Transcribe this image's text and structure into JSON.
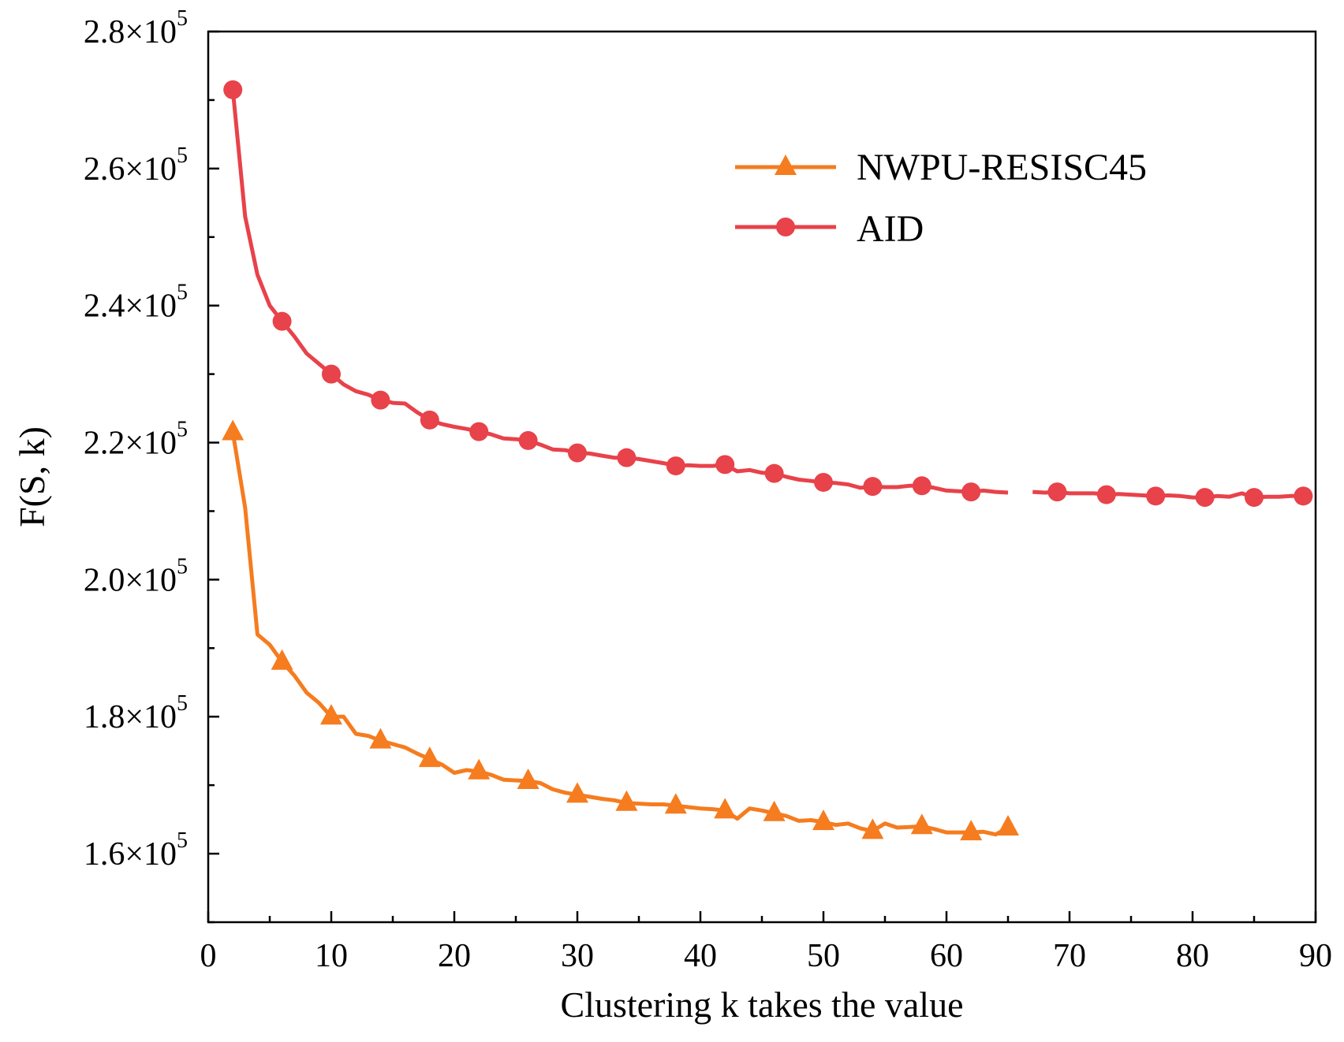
{
  "chart_data": {
    "type": "line",
    "title": "",
    "xlabel": "Clustering k takes the value",
    "ylabel": "F(S,  k)",
    "xlim": [
      0,
      90
    ],
    "ylim": [
      150000,
      280000
    ],
    "x_ticks": [
      0,
      10,
      20,
      30,
      40,
      50,
      60,
      70,
      80,
      90
    ],
    "x_tick_labels": [
      "0",
      "10",
      "20",
      "30",
      "40",
      "50",
      "60",
      "70",
      "80",
      "90"
    ],
    "y_ticks": [
      160000,
      180000,
      200000,
      220000,
      240000,
      260000,
      280000
    ],
    "y_tick_labels": [
      {
        "mantissa": "1.6×10",
        "exp": "5"
      },
      {
        "mantissa": "1.8×10",
        "exp": "5"
      },
      {
        "mantissa": "2.0×10",
        "exp": "5"
      },
      {
        "mantissa": "2.2×10",
        "exp": "5"
      },
      {
        "mantissa": "2.4×10",
        "exp": "5"
      },
      {
        "mantissa": "2.6×10",
        "exp": "5"
      },
      {
        "mantissa": "2.8×10",
        "exp": "5"
      }
    ],
    "legend_position": "top-right",
    "series": [
      {
        "name": "NWPU-RESISC45",
        "color": "#f57c1f",
        "marker": "triangle",
        "x": [
          2,
          3,
          4,
          5,
          6,
          7,
          8,
          9,
          10,
          11,
          12,
          13,
          14,
          15,
          16,
          17,
          18,
          19,
          20,
          21,
          22,
          23,
          24,
          25,
          26,
          27,
          28,
          29,
          30,
          31,
          32,
          33,
          34,
          35,
          36,
          37,
          38,
          39,
          40,
          41,
          42,
          43,
          44,
          45,
          46,
          47,
          48,
          49,
          50,
          51,
          52,
          53,
          54,
          55,
          56,
          57,
          58,
          59,
          60,
          61,
          62,
          63,
          64,
          65
        ],
        "y": [
          221500,
          210500,
          192000,
          190500,
          188000,
          186000,
          183500,
          182000,
          180000,
          180000,
          177500,
          177200,
          176500,
          176000,
          175500,
          174600,
          173800,
          173000,
          171800,
          172200,
          172000,
          171500,
          170800,
          170700,
          170600,
          170300,
          169400,
          168900,
          168600,
          168300,
          168000,
          167800,
          167400,
          167300,
          167200,
          167200,
          167000,
          166800,
          166600,
          166500,
          166300,
          165100,
          166600,
          166300,
          165900,
          165500,
          164800,
          164900,
          164600,
          164200,
          164400,
          163700,
          163300,
          164400,
          163800,
          163900,
          164000,
          163600,
          163100,
          163100,
          163100,
          163200,
          162800,
          163800
        ],
        "marker_x": [
          2,
          6,
          10,
          14,
          18,
          22,
          26,
          30,
          34,
          38,
          42,
          46,
          50,
          54,
          58,
          62,
          65
        ],
        "marker_y": [
          221500,
          188000,
          180000,
          176500,
          173800,
          172000,
          170600,
          168600,
          167400,
          167000,
          166300,
          165900,
          164600,
          163300,
          164000,
          163100,
          163800
        ]
      },
      {
        "name": "AID",
        "color": "#e8424a",
        "marker": "circle",
        "x": [
          2,
          3,
          4,
          5,
          6,
          7,
          8,
          9,
          10,
          11,
          12,
          13,
          14,
          15,
          16,
          17,
          18,
          19,
          20,
          21,
          22,
          23,
          24,
          25,
          26,
          27,
          28,
          29,
          30,
          31,
          32,
          33,
          34,
          35,
          36,
          37,
          38,
          39,
          40,
          41,
          42,
          43,
          44,
          45,
          46,
          47,
          48,
          49,
          50,
          51,
          52,
          53,
          54,
          55,
          56,
          57,
          58,
          59,
          60,
          61,
          62,
          63,
          64,
          65,
          66,
          67,
          68,
          69,
          70,
          71,
          72,
          73,
          74,
          75,
          76,
          77,
          78,
          79,
          80,
          81,
          82,
          83,
          84,
          85,
          86,
          87,
          88,
          89
        ],
        "y": [
          271500,
          253000,
          244500,
          240000,
          237700,
          235500,
          233000,
          231500,
          230000,
          228500,
          227500,
          227000,
          226200,
          225800,
          225700,
          224400,
          223300,
          222700,
          222300,
          222000,
          221600,
          221200,
          220600,
          220500,
          220300,
          219700,
          219000,
          218900,
          218500,
          218400,
          218100,
          217800,
          217800,
          217600,
          217300,
          217000,
          216600,
          216700,
          216600,
          216600,
          216800,
          215800,
          216000,
          215600,
          215500,
          215000,
          214600,
          214400,
          214200,
          214100,
          213900,
          213400,
          213600,
          213500,
          213500,
          213700,
          213700,
          213400,
          213000,
          212900,
          212800,
          213000,
          212800,
          212700,
          null,
          212800,
          212700,
          212800,
          212600,
          212600,
          212600,
          212400,
          212500,
          212400,
          212300,
          212200,
          212300,
          212200,
          212000,
          212000,
          212200,
          212100,
          212600,
          212000,
          212100,
          212100,
          212200,
          212200
        ],
        "marker_x": [
          2,
          6,
          10,
          14,
          18,
          22,
          26,
          30,
          34,
          38,
          42,
          46,
          50,
          54,
          58,
          62,
          69,
          73,
          77,
          81,
          85,
          89
        ],
        "marker_y": [
          271500,
          237700,
          230000,
          226200,
          223300,
          221600,
          220300,
          218500,
          217800,
          216600,
          216800,
          215500,
          214200,
          213600,
          213700,
          212800,
          212800,
          212400,
          212200,
          212000,
          212000,
          212200
        ]
      }
    ]
  }
}
